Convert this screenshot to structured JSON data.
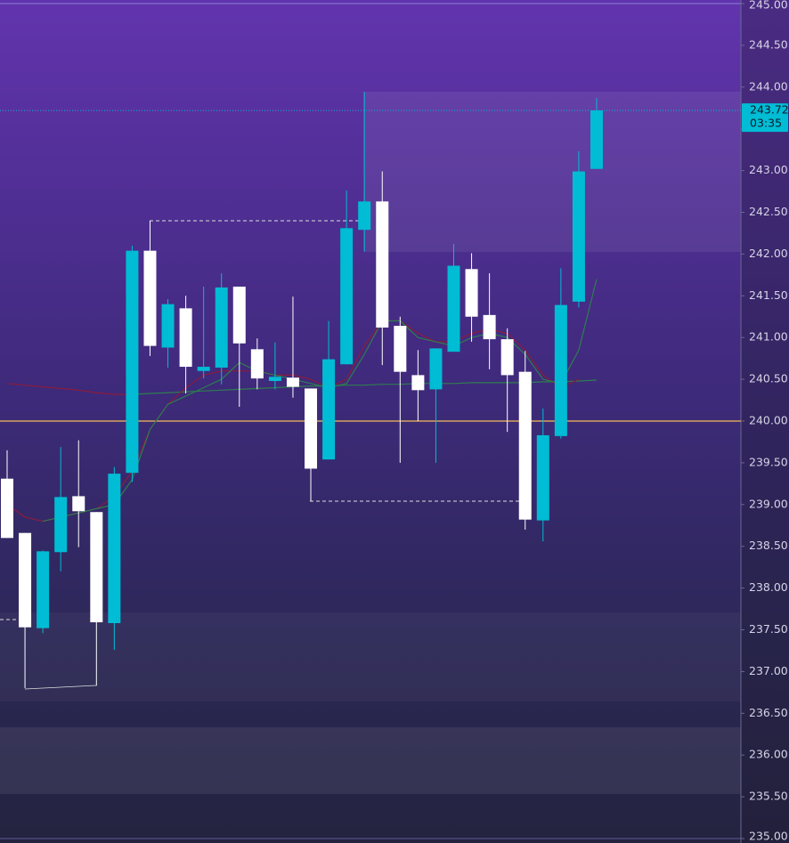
{
  "chart_data": {
    "type": "candlestick",
    "open": [
      239.31,
      238.66,
      237.52,
      238.43,
      239.1,
      238.91,
      237.58,
      239.38,
      242.04,
      240.88,
      241.35,
      240.6,
      240.64,
      241.61,
      240.86,
      240.48,
      240.52,
      240.39,
      239.54,
      240.68,
      242.29,
      242.63,
      241.14,
      240.55,
      240.38,
      240.83,
      241.82,
      241.27,
      240.98,
      240.59,
      238.81,
      239.82,
      241.43,
      243.02
    ],
    "high": [
      239.65,
      238.66,
      238.45,
      239.69,
      239.77,
      238.91,
      239.45,
      242.1,
      242.4,
      241.46,
      241.5,
      241.61,
      241.77,
      241.61,
      240.99,
      240.94,
      241.49,
      240.39,
      241.2,
      242.76,
      243.94,
      242.99,
      241.25,
      240.85,
      240.87,
      242.12,
      242.01,
      241.77,
      241.11,
      240.84,
      240.15,
      241.83,
      243.23,
      243.87
    ],
    "low": [
      238.6,
      236.8,
      237.46,
      238.2,
      238.49,
      236.83,
      237.26,
      239.27,
      240.78,
      240.64,
      240.33,
      240.51,
      240.44,
      240.17,
      240.38,
      240.38,
      240.28,
      239.04,
      239.54,
      240.68,
      242.03,
      240.67,
      239.5,
      240.0,
      239.5,
      240.83,
      240.95,
      240.62,
      239.87,
      238.7,
      238.56,
      239.79,
      241.36,
      243.02
    ],
    "close": [
      238.6,
      237.53,
      238.44,
      239.09,
      238.92,
      237.59,
      239.37,
      242.04,
      240.9,
      241.4,
      240.65,
      240.65,
      241.6,
      240.93,
      240.51,
      240.53,
      240.41,
      239.43,
      240.74,
      242.31,
      242.63,
      241.12,
      240.59,
      240.37,
      240.87,
      241.86,
      241.25,
      240.98,
      240.55,
      238.82,
      239.83,
      241.39,
      242.99,
      243.72
    ],
    "up_color": "#00bcd4",
    "down_color": "#ffffff",
    "series": [
      {
        "color": "#8a1c3c",
        "values": [
          240.45,
          240.43,
          240.41,
          240.39,
          240.37,
          240.34,
          240.32,
          240.32,
          null,
          null,
          null,
          null,
          null,
          null,
          null,
          null,
          null,
          null,
          null,
          null,
          null,
          null,
          null,
          null,
          null,
          null,
          null,
          null,
          null,
          null,
          null,
          null,
          null,
          null
        ]
      },
      {
        "color": "#2e7d4f",
        "values": [
          null,
          null,
          null,
          null,
          null,
          null,
          null,
          240.32,
          240.33,
          240.34,
          240.35,
          240.36,
          240.37,
          240.38,
          240.39,
          240.4,
          240.41,
          240.42,
          240.42,
          240.43,
          240.43,
          240.44,
          240.44,
          240.45,
          240.45,
          240.45,
          240.46,
          240.46,
          240.46,
          240.46,
          240.47,
          240.47,
          240.48,
          240.49
        ]
      },
      {
        "color": "#8a1c3c",
        "values": [
          239.0,
          238.85,
          238.8,
          238.85,
          238.9,
          238.95,
          239.1,
          239.4,
          239.9,
          240.2,
          240.4,
          240.55,
          240.6,
          240.6,
          240.6,
          240.55,
          240.55,
          240.5,
          240.4,
          240.5,
          240.9,
          241.2,
          241.2,
          241.05,
          240.95,
          240.95,
          241.05,
          241.1,
          241.05,
          240.85,
          240.55,
          240.4,
          240.5,
          null
        ]
      },
      {
        "color": "#2e7d4f",
        "values": [
          null,
          null,
          238.8,
          238.85,
          238.9,
          238.95,
          239.0,
          239.3,
          239.9,
          240.2,
          240.3,
          240.4,
          240.5,
          240.7,
          240.6,
          240.55,
          240.5,
          240.45,
          240.4,
          240.45,
          240.8,
          241.2,
          241.2,
          241.0,
          240.95,
          240.9,
          241.0,
          241.05,
          241.0,
          240.8,
          240.5,
          240.45,
          240.85,
          241.7
        ]
      }
    ],
    "hline": {
      "value": 240,
      "color": "#d8a25e"
    },
    "last_price": {
      "value": 243.72,
      "label": "243.72"
    },
    "countdown": "03:35",
    "ylim": [
      235,
      245
    ],
    "yticks": [
      {
        "value": 235,
        "label": "235.00"
      },
      {
        "value": 235.5,
        "label": "235.50"
      },
      {
        "value": 236,
        "label": "236.00"
      },
      {
        "value": 236.5,
        "label": "236.50"
      },
      {
        "value": 237,
        "label": "237.00"
      },
      {
        "value": 237.5,
        "label": "237.50"
      },
      {
        "value": 238,
        "label": "238.00"
      },
      {
        "value": 238.5,
        "label": "238.50"
      },
      {
        "value": 239,
        "label": "239.00"
      },
      {
        "value": 239.5,
        "label": "239.50"
      },
      {
        "value": 240,
        "label": "240.00"
      },
      {
        "value": 240.5,
        "label": "240.50"
      },
      {
        "value": 241,
        "label": "241.00"
      },
      {
        "value": 241.5,
        "label": "241.50"
      },
      {
        "value": 242,
        "label": "242.00"
      },
      {
        "value": 242.5,
        "label": "242.50"
      },
      {
        "value": 243,
        "label": "243.00"
      },
      {
        "value": 243.5,
        "label": "243.50"
      },
      {
        "value": 244,
        "label": "244.00"
      },
      {
        "value": 244.5,
        "label": "244.50"
      },
      {
        "value": 245,
        "label": "245.00"
      }
    ]
  }
}
